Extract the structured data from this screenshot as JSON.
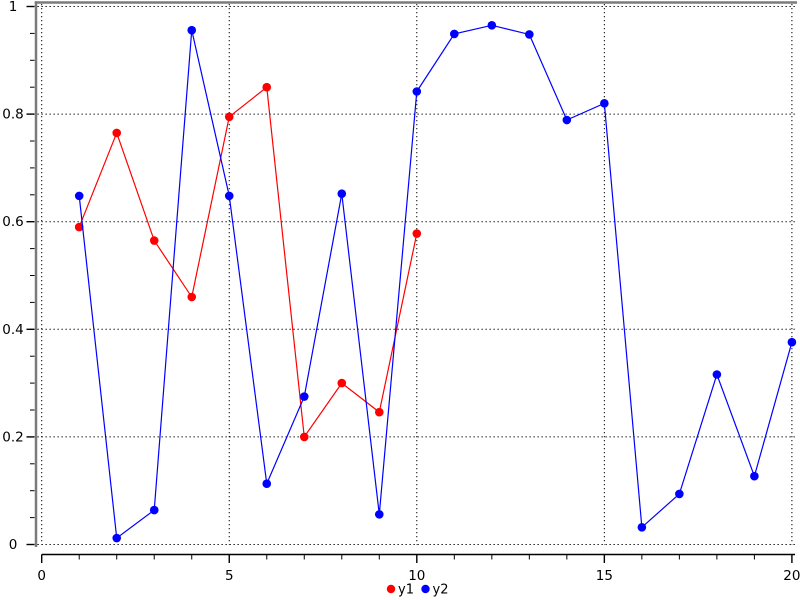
{
  "window_title": "",
  "chart_data": {
    "type": "line",
    "title": "",
    "xlabel": "",
    "ylabel": "",
    "xlim": [
      0,
      20
    ],
    "ylim": [
      0,
      1
    ],
    "grid": "dotted-at-major-ticks",
    "legend_position": "bottom-center",
    "background_color": "#ffffff",
    "spine_color": "#7b7b7b",
    "axis_color": "#000000",
    "grid_color": "#000000",
    "x_axis": {
      "major_ticks": [
        0,
        5,
        10,
        15,
        20
      ],
      "major_labels": [
        "0",
        "5",
        "10",
        "15",
        "20"
      ],
      "minor_tick_step": 1
    },
    "y_axis": {
      "major_ticks": [
        0,
        0.2,
        0.4,
        0.6,
        0.8,
        1
      ],
      "major_labels": [
        "0",
        "0.2",
        "0.4",
        "0.6",
        "0.8",
        "1"
      ],
      "minor_tick_step": 0.05
    },
    "series": [
      {
        "name": "y1",
        "color": "#ff0000",
        "marker": "filled-circle",
        "x": [
          1,
          2,
          3,
          4,
          5,
          6,
          7,
          8,
          9,
          10
        ],
        "values": [
          0.59,
          0.765,
          0.565,
          0.46,
          0.795,
          0.85,
          0.2,
          0.3,
          0.246,
          0.578
        ]
      },
      {
        "name": "y2",
        "color": "#0000ff",
        "marker": "filled-circle",
        "x": [
          1,
          2,
          3,
          4,
          5,
          6,
          7,
          8,
          9,
          10,
          11,
          12,
          13,
          14,
          15,
          16,
          17,
          18,
          19,
          20
        ],
        "values": [
          0.648,
          0.012,
          0.064,
          0.956,
          0.648,
          0.113,
          0.275,
          0.652,
          0.056,
          0.842,
          0.949,
          0.965,
          0.948,
          0.789,
          0.82,
          0.032,
          0.094,
          0.316,
          0.127,
          0.376
        ]
      }
    ],
    "legend": {
      "items": [
        {
          "label": "y1",
          "color": "#ff0000"
        },
        {
          "label": "y2",
          "color": "#0000ff"
        }
      ]
    }
  }
}
